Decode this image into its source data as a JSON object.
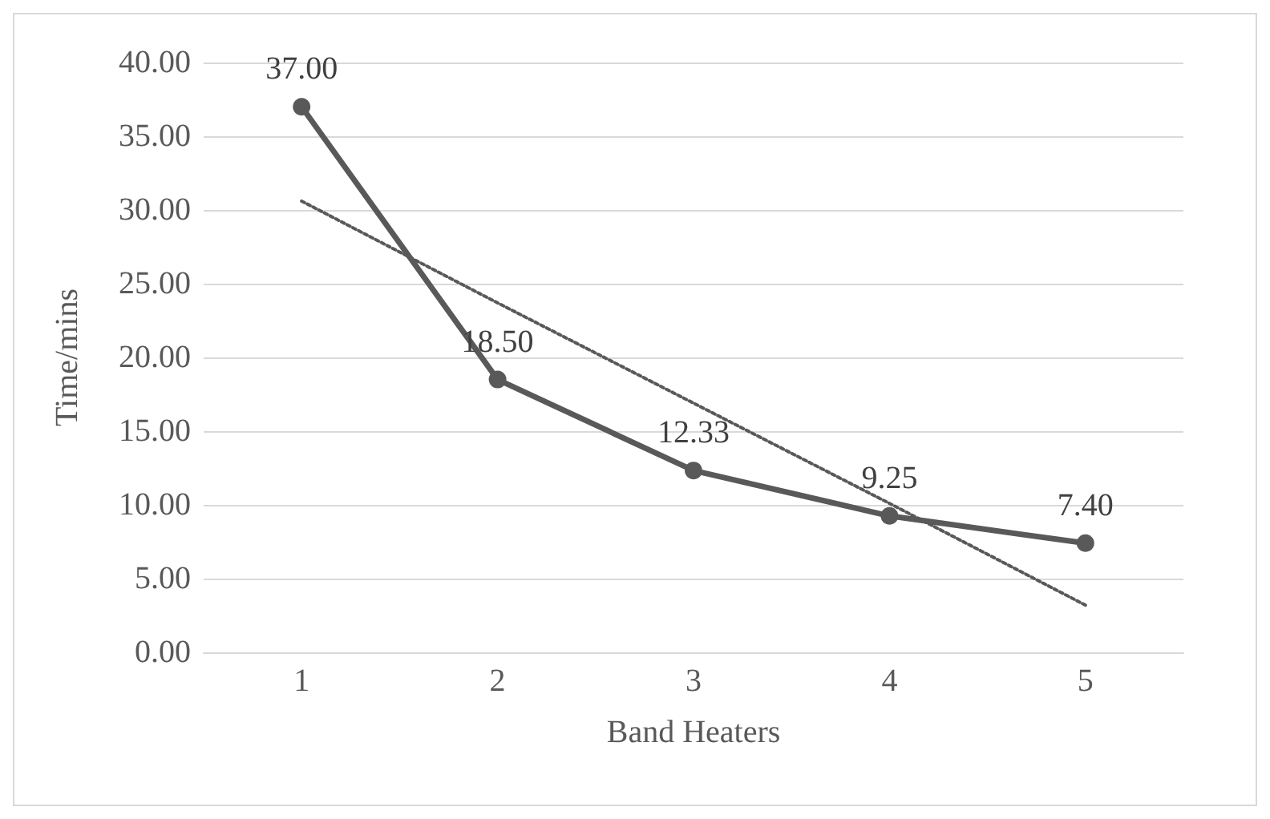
{
  "chart_data": {
    "type": "line",
    "xlabel": "Band Heaters",
    "ylabel": "Time/mins",
    "categories": [
      "1",
      "2",
      "3",
      "4",
      "5"
    ],
    "series": [
      {
        "color": "#595959",
        "values": [
          37.0,
          18.5,
          12.33,
          9.25,
          7.4
        ],
        "value_labels": [
          "37.00",
          "18.50",
          "12.33",
          "9.25",
          "7.40"
        ],
        "marker": "circle",
        "line_style": "solid"
      },
      {
        "color": "#595959",
        "values": [
          30.6,
          23.7,
          16.9,
          10.1,
          3.2
        ],
        "marker": "none",
        "line_style": "dotted"
      }
    ],
    "ylim": [
      0,
      40
    ],
    "yticks": [
      {
        "value": 0,
        "label": "0.00"
      },
      {
        "value": 5,
        "label": "5.00"
      },
      {
        "value": 10,
        "label": "10.00"
      },
      {
        "value": 15,
        "label": "15.00"
      },
      {
        "value": 20,
        "label": "20.00"
      },
      {
        "value": 25,
        "label": "25.00"
      },
      {
        "value": 30,
        "label": "30.00"
      },
      {
        "value": 35,
        "label": "35.00"
      },
      {
        "value": 40,
        "label": "40.00"
      }
    ],
    "grid": "y"
  }
}
